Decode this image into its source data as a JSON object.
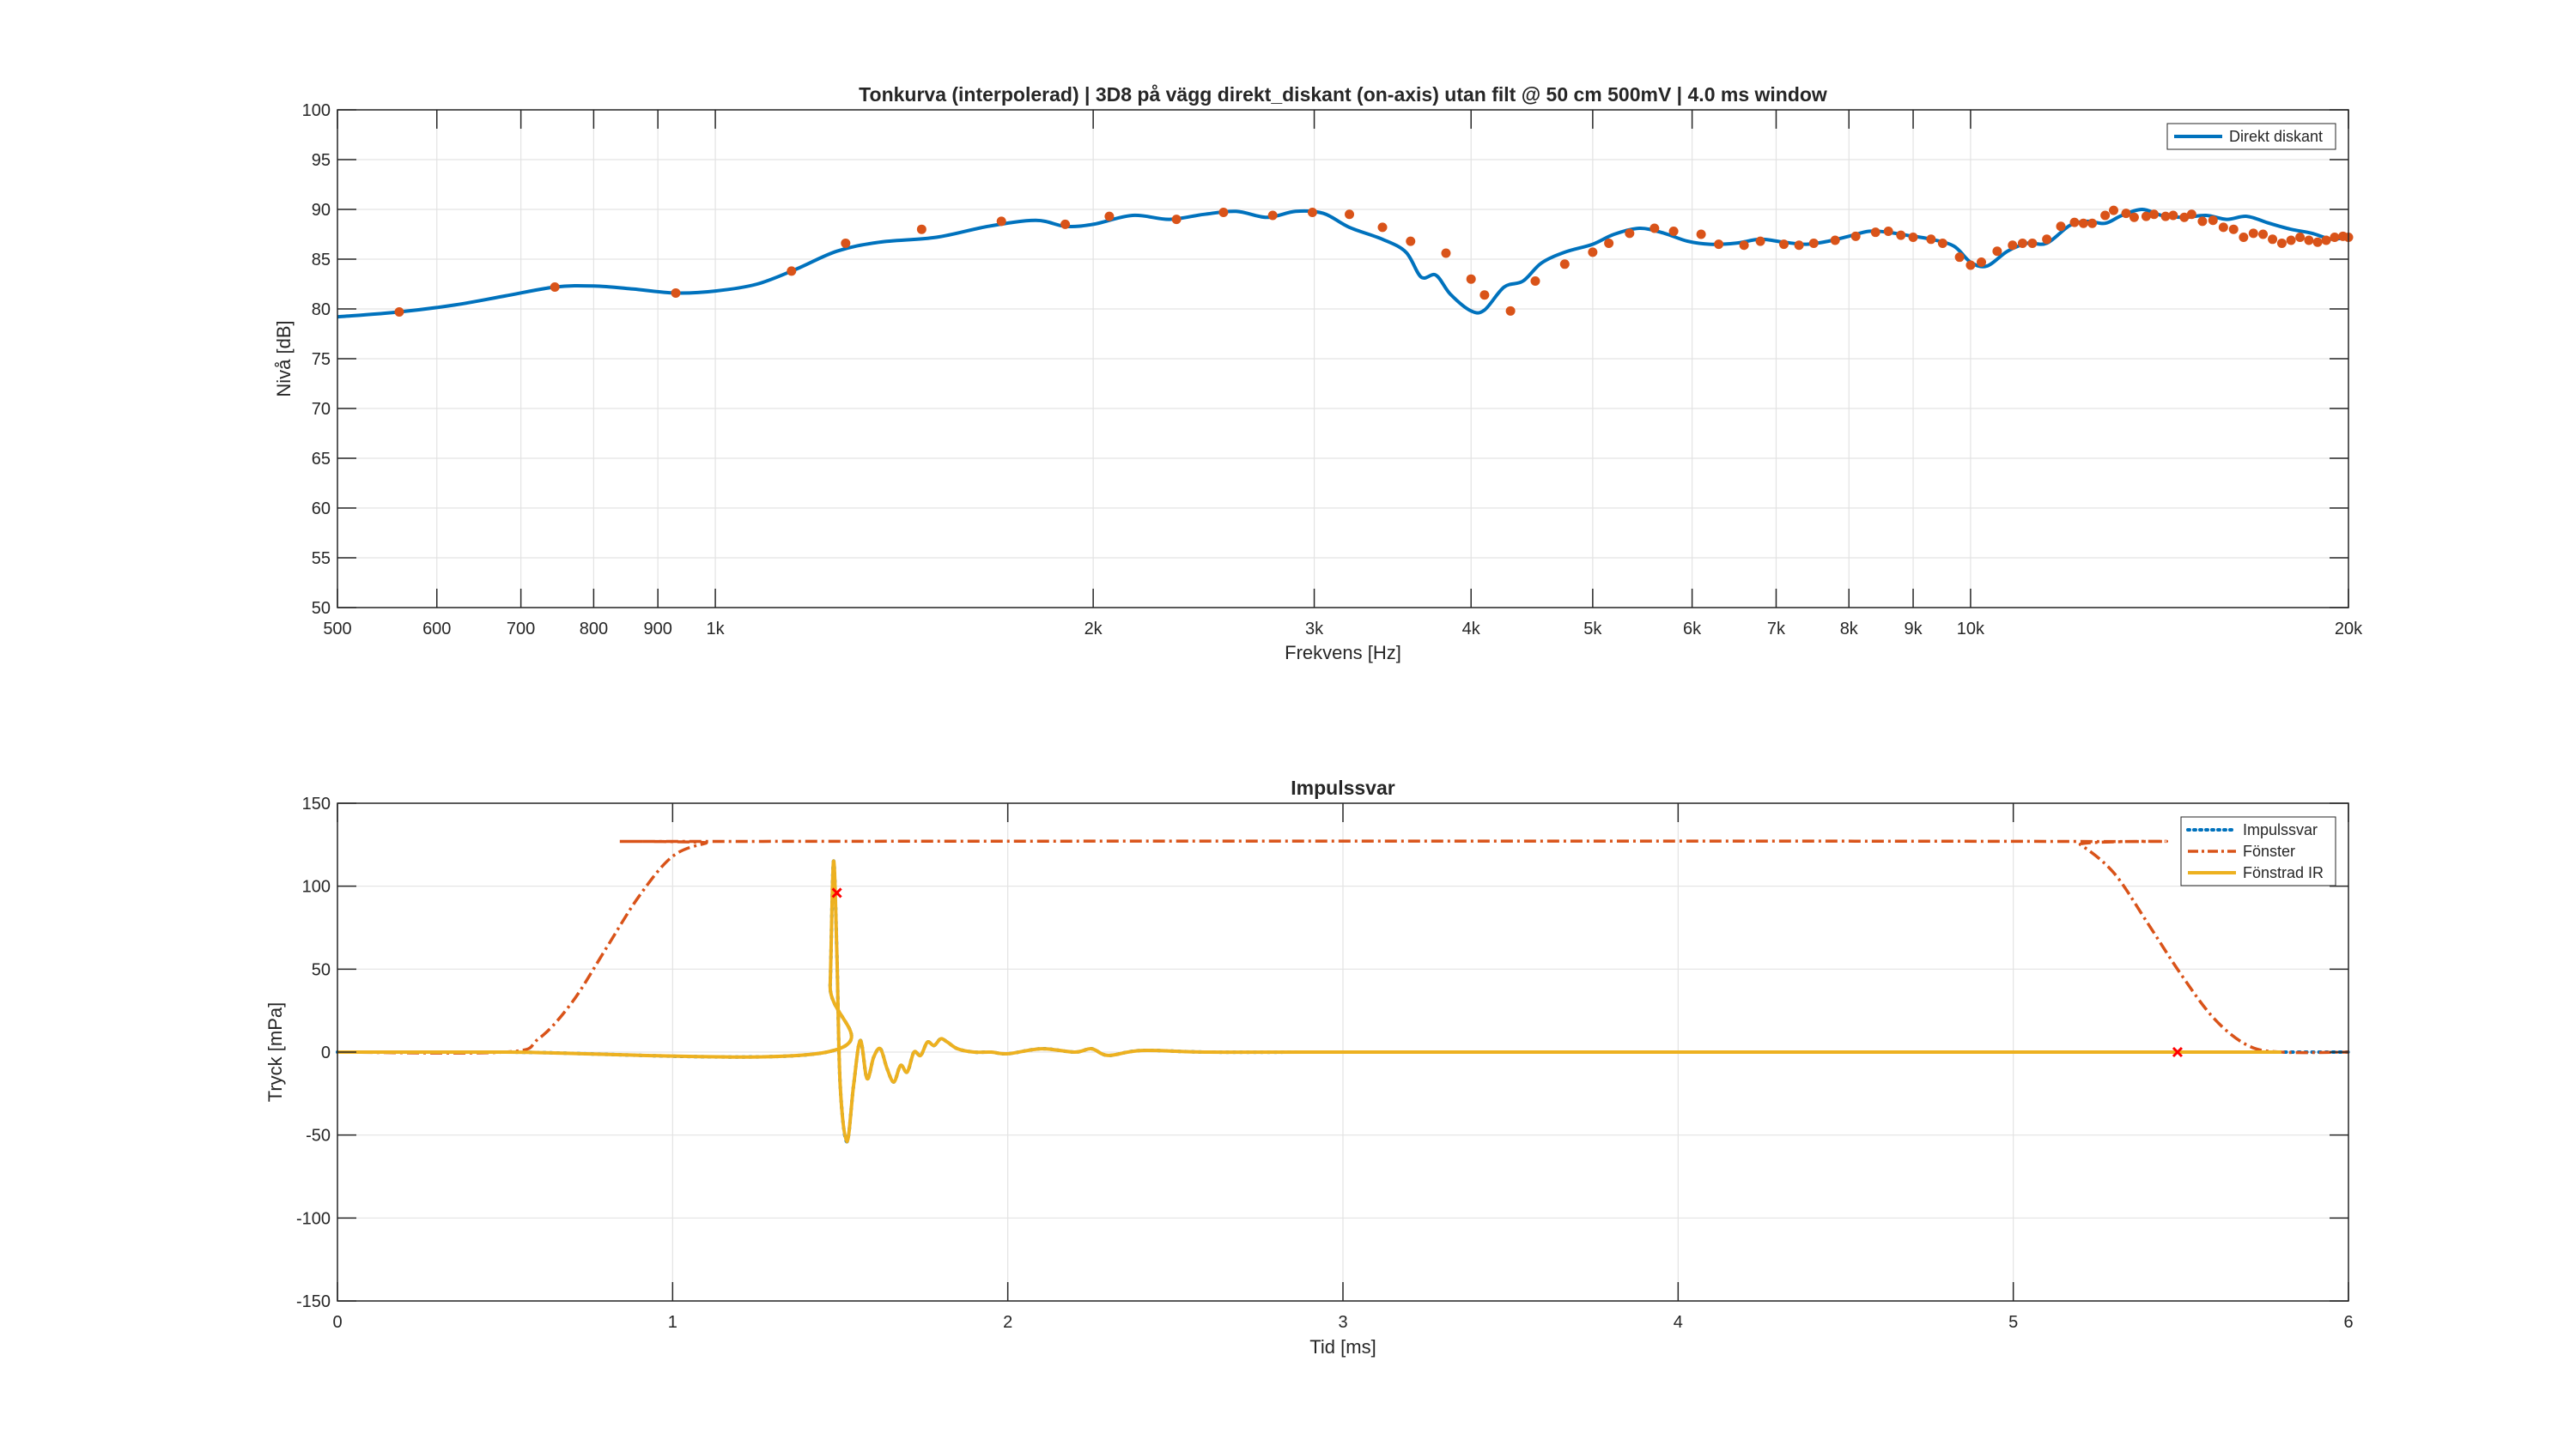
{
  "chart_data": [
    {
      "type": "line",
      "title": "Tonkurva (interpolerad) | 3D8 på vägg direkt_diskant (on-axis) utan filt @ 50 cm 500mV | 4.0 ms window",
      "xlabel": "Frekvens [Hz]",
      "ylabel": "Nivå [dB]",
      "xscale": "log",
      "xlim": [
        500,
        20000
      ],
      "ylim": [
        50,
        100
      ],
      "grid": true,
      "legend_placement": "top-right",
      "x_ticks": [
        500,
        600,
        700,
        800,
        900,
        1000,
        2000,
        3000,
        4000,
        5000,
        6000,
        7000,
        8000,
        9000,
        10000,
        20000
      ],
      "x_tick_labels": [
        "500",
        "600",
        "700",
        "800",
        "900",
        "1k",
        "2k",
        "3k",
        "4k",
        "5k",
        "6k",
        "7k",
        "8k",
        "9k",
        "10k",
        "20k"
      ],
      "y_ticks": [
        50,
        55,
        60,
        65,
        70,
        75,
        80,
        85,
        90,
        95,
        100
      ],
      "y_tick_labels": [
        "50",
        "55",
        "60",
        "65",
        "70",
        "75",
        "80",
        "85",
        "90",
        "95",
        "100"
      ],
      "series": [
        {
          "name": "Direkt diskant",
          "color": "#0072BD",
          "style": "solid",
          "x": [
            500,
            560,
            620,
            680,
            745,
            800,
            860,
            930,
            1000,
            1080,
            1160,
            1250,
            1350,
            1500,
            1650,
            1800,
            1900,
            2000,
            2150,
            2300,
            2450,
            2600,
            2750,
            2900,
            3050,
            3200,
            3400,
            3550,
            3650,
            3750,
            3850,
            4000,
            4100,
            4250,
            4400,
            4550,
            4750,
            5000,
            5200,
            5450,
            5700,
            5950,
            6200,
            6500,
            6800,
            7100,
            7400,
            7700,
            8000,
            8300,
            8600,
            8900,
            9300,
            9700,
            10000,
            10300,
            10700,
            11100,
            11500,
            12000,
            12400,
            12800,
            13200,
            13700,
            14200,
            14800,
            15400,
            16000,
            16600,
            17300,
            18000,
            18700,
            19400,
            20000
          ],
          "y": [
            79.2,
            79.7,
            80.4,
            81.3,
            82.2,
            82.3,
            82.0,
            81.6,
            81.8,
            82.5,
            84.0,
            85.8,
            86.7,
            87.2,
            88.3,
            88.9,
            88.3,
            88.5,
            89.4,
            89.0,
            89.5,
            89.8,
            89.2,
            89.8,
            89.6,
            88.2,
            87.0,
            85.7,
            83.2,
            83.4,
            81.5,
            79.8,
            79.9,
            82.2,
            82.8,
            84.6,
            85.7,
            86.5,
            87.5,
            88.1,
            87.6,
            86.8,
            86.5,
            86.6,
            87.0,
            86.7,
            86.5,
            86.8,
            87.3,
            87.8,
            87.7,
            87.4,
            87.0,
            86.3,
            84.7,
            84.3,
            85.8,
            86.6,
            86.6,
            88.4,
            88.8,
            88.6,
            89.4,
            90.0,
            89.4,
            89.2,
            89.4,
            89.0,
            89.3,
            88.6,
            88.0,
            87.6,
            87.0,
            87.3
          ]
        },
        {
          "name": "",
          "color": "#D95319",
          "style": "markers",
          "x": [
            560,
            745,
            930,
            1150,
            1270,
            1460,
            1690,
            1900,
            2060,
            2330,
            2540,
            2780,
            2990,
            3200,
            3400,
            3580,
            3820,
            4000,
            4100,
            4300,
            4500,
            4750,
            5000,
            5150,
            5350,
            5600,
            5800,
            6100,
            6300,
            6600,
            6800,
            7100,
            7300,
            7500,
            7800,
            8100,
            8400,
            8600,
            8800,
            9000,
            9300,
            9500,
            9800,
            10000,
            10200,
            10500,
            10800,
            11000,
            11200,
            11500,
            11800,
            12100,
            12300,
            12500,
            12800,
            13000,
            13300,
            13500,
            13800,
            14000,
            14300,
            14500,
            14800,
            15000,
            15300,
            15600,
            15900,
            16200,
            16500,
            16800,
            17100,
            17400,
            17700,
            18000,
            18300,
            18600,
            18900,
            19200,
            19500,
            19800,
            20000
          ],
          "y": [
            79.7,
            82.2,
            81.6,
            83.8,
            86.6,
            88.0,
            88.8,
            88.5,
            89.3,
            89.0,
            89.7,
            89.4,
            89.7,
            89.5,
            88.2,
            86.8,
            85.6,
            83.0,
            81.4,
            79.8,
            82.8,
            84.5,
            85.7,
            86.6,
            87.6,
            88.1,
            87.8,
            87.5,
            86.5,
            86.4,
            86.8,
            86.5,
            86.4,
            86.6,
            86.9,
            87.3,
            87.7,
            87.8,
            87.4,
            87.2,
            87.0,
            86.6,
            85.2,
            84.4,
            84.7,
            85.8,
            86.4,
            86.6,
            86.6,
            87.0,
            88.3,
            88.7,
            88.6,
            88.6,
            89.4,
            89.9,
            89.6,
            89.2,
            89.3,
            89.5,
            89.3,
            89.4,
            89.2,
            89.5,
            88.8,
            88.9,
            88.2,
            88.0,
            87.2,
            87.6,
            87.5,
            87.0,
            86.6,
            86.9,
            87.2,
            86.9,
            86.7,
            86.9,
            87.2,
            87.3,
            87.2
          ]
        }
      ]
    },
    {
      "type": "line",
      "title": "Impulssvar",
      "xlabel": "Tid [ms]",
      "ylabel": "Tryck [mPa]",
      "xlim": [
        0,
        6
      ],
      "ylim": [
        -150,
        150
      ],
      "grid": true,
      "legend_placement": "top-right",
      "x_ticks": [
        0,
        1,
        2,
        3,
        4,
        5,
        6
      ],
      "x_tick_labels": [
        "0",
        "1",
        "2",
        "3",
        "4",
        "5",
        "6"
      ],
      "y_ticks": [
        -150,
        -100,
        -50,
        0,
        50,
        100,
        150
      ],
      "y_tick_labels": [
        "-150",
        "-100",
        "-50",
        "0",
        "50",
        "100",
        "150"
      ],
      "series": [
        {
          "name": "Impulssvar",
          "color": "#0072BD",
          "style": "dotted",
          "x": [
            0,
            0.5,
            1.46,
            1.47,
            1.48,
            1.49,
            1.5,
            1.52,
            1.54,
            1.56,
            1.58,
            1.6,
            1.62,
            1.64,
            1.66,
            1.68,
            1.7,
            1.72,
            1.74,
            1.76,
            1.78,
            1.8,
            1.82,
            1.85,
            1.9,
            1.95,
            2.0,
            2.1,
            2.2,
            2.25,
            2.3,
            2.4,
            2.6,
            3.0,
            4.0,
            5.0,
            5.5,
            5.8,
            6.0
          ],
          "y": [
            0,
            0,
            0,
            40,
            115,
            60,
            -20,
            -54,
            -20,
            7,
            -16,
            -3,
            2,
            -10,
            -18,
            -8,
            -12,
            0,
            -2,
            6,
            4,
            8,
            6,
            2,
            0,
            0,
            -1,
            2,
            0,
            2,
            -2,
            1,
            0,
            0,
            0,
            0,
            0,
            0,
            0
          ]
        },
        {
          "name": "Fönster",
          "color": "#D95319",
          "style": "dash-dot",
          "x": [
            0,
            0.5,
            0.6,
            0.7,
            0.8,
            0.9,
            1.0,
            1.1,
            1.15,
            5.15,
            5.2,
            5.3,
            5.4,
            5.5,
            5.6,
            5.7,
            5.8,
            6.0
          ],
          "y": [
            0,
            0,
            8,
            30,
            62,
            94,
            118,
            126,
            127,
            127,
            125,
            108,
            78,
            47,
            20,
            4,
            0,
            0
          ]
        },
        {
          "name": "Fönstrad IR",
          "color": "#EDB120",
          "style": "solid",
          "x": [
            0,
            0.5,
            1.46,
            1.47,
            1.48,
            1.49,
            1.5,
            1.52,
            1.54,
            1.56,
            1.58,
            1.6,
            1.62,
            1.64,
            1.66,
            1.68,
            1.7,
            1.72,
            1.74,
            1.76,
            1.78,
            1.8,
            1.82,
            1.85,
            1.9,
            1.95,
            2.0,
            2.1,
            2.2,
            2.25,
            2.3,
            2.4,
            2.6,
            3.0,
            4.0,
            5.0,
            5.5,
            5.8
          ],
          "y": [
            0,
            0,
            0,
            40,
            115,
            60,
            -20,
            -54,
            -20,
            7,
            -16,
            -3,
            2,
            -10,
            -18,
            -8,
            -12,
            0,
            -2,
            6,
            4,
            8,
            6,
            2,
            0,
            0,
            -1,
            2,
            0,
            2,
            -2,
            1,
            0,
            0,
            0,
            0,
            0,
            0
          ]
        },
        {
          "name": "",
          "color": "#FF0000",
          "style": "x-markers",
          "x": [
            1.49,
            5.49
          ],
          "y": [
            96,
            0
          ]
        }
      ]
    }
  ]
}
